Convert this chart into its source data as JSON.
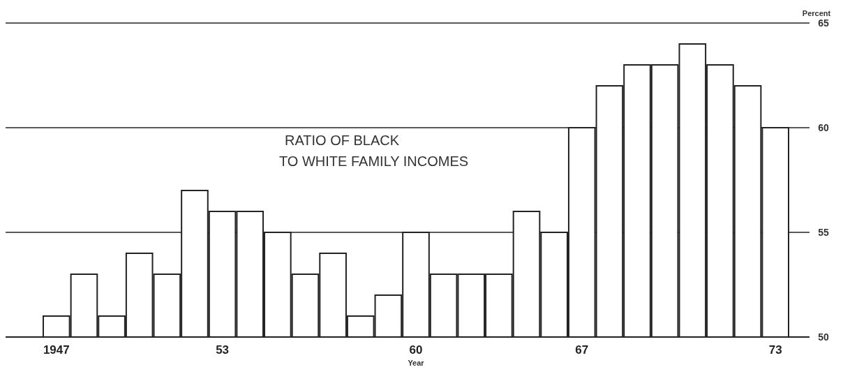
{
  "chart_data": {
    "type": "bar",
    "title": "RATIO OF BLACK\nTO WHITE FAMILY INCOMES",
    "xlabel": "Year",
    "ylabel": "Percent",
    "categories": [
      "1947",
      null,
      null,
      null,
      null,
      null,
      "53",
      null,
      null,
      null,
      null,
      null,
      null,
      "60",
      null,
      null,
      null,
      null,
      null,
      "67",
      null,
      null,
      null,
      null,
      null,
      null,
      "73"
    ],
    "values": [
      51,
      53,
      51,
      54,
      53,
      57,
      56,
      56,
      55,
      53,
      54,
      51,
      52,
      55,
      53,
      53,
      53,
      56,
      55,
      60,
      62,
      63,
      63,
      64,
      63,
      62,
      60
    ],
    "color": "#ffffff",
    "ylim": [
      50,
      65
    ],
    "yticks": [
      50,
      55,
      60,
      65
    ],
    "grid": "y"
  }
}
